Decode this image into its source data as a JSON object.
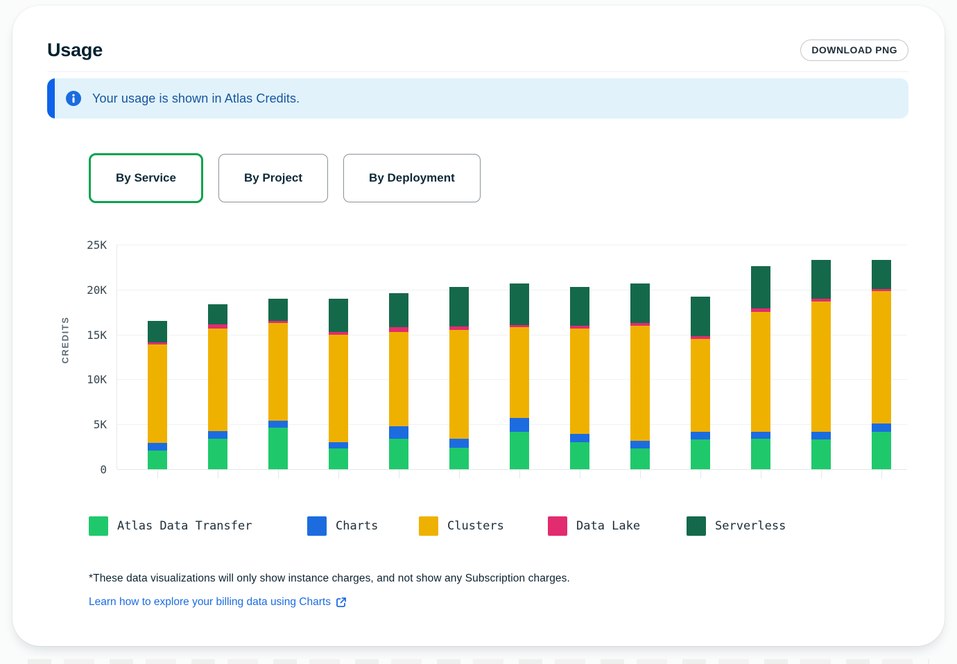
{
  "header": {
    "title": "Usage",
    "download_button": "DOWNLOAD PNG"
  },
  "banner": {
    "message": "Your usage is shown in Atlas Credits.",
    "background": "#E1F2FA",
    "accent_bar": "#0E63E8",
    "icon_color": "#1A6CE0",
    "text_color": "#16559E"
  },
  "tabs": {
    "items": [
      {
        "label": "By Service",
        "active": true
      },
      {
        "label": "By Project",
        "active": false
      },
      {
        "label": "By Deployment",
        "active": false
      }
    ],
    "active_border_color": "#0CA24F"
  },
  "chart_data": {
    "type": "bar",
    "stacked": true,
    "ylabel": "CREDITS",
    "xlabel": "",
    "ylim": [
      0,
      25000
    ],
    "grid": true,
    "x_tick_labels_visible": false,
    "bar_count": 13,
    "legend_position": "bottom",
    "yticks": [
      {
        "value": 0,
        "label": "0"
      },
      {
        "value": 5000,
        "label": "5K"
      },
      {
        "value": 10000,
        "label": "10K"
      },
      {
        "value": 15000,
        "label": "15K"
      },
      {
        "value": 20000,
        "label": "20K"
      },
      {
        "value": 25000,
        "label": "25K"
      }
    ],
    "series": [
      {
        "name": "Atlas Data Transfer",
        "color": "#1FC96B",
        "values": [
          2100,
          3400,
          4600,
          2300,
          3400,
          2400,
          4200,
          3000,
          2300,
          3300,
          3400,
          3300,
          4200
        ]
      },
      {
        "name": "Charts",
        "color": "#1C6CE0",
        "values": [
          800,
          850,
          800,
          700,
          1400,
          1000,
          1500,
          900,
          900,
          900,
          800,
          900,
          900
        ]
      },
      {
        "name": "Clusters",
        "color": "#EFB100",
        "values": [
          11000,
          11450,
          10900,
          12000,
          10500,
          12100,
          10100,
          11800,
          12800,
          10300,
          13300,
          14500,
          14700
        ]
      },
      {
        "name": "Data Lake",
        "color": "#E22C6F",
        "values": [
          250,
          400,
          250,
          300,
          500,
          400,
          250,
          300,
          300,
          300,
          400,
          300,
          300
        ]
      },
      {
        "name": "Serverless",
        "color": "#15694B",
        "values": [
          2350,
          2250,
          2450,
          3700,
          3800,
          4400,
          4650,
          4300,
          4400,
          4400,
          4700,
          4300,
          3200
        ]
      }
    ],
    "totals": [
      16500,
      18350,
      19000,
      19000,
      19600,
      20300,
      20700,
      20300,
      20700,
      19200,
      22600,
      23300,
      23300
    ]
  },
  "footnote": "*These data visualizations will only show instance charges, and not show any Subscription charges.",
  "link": {
    "label": "Learn how to explore your billing data using Charts"
  }
}
